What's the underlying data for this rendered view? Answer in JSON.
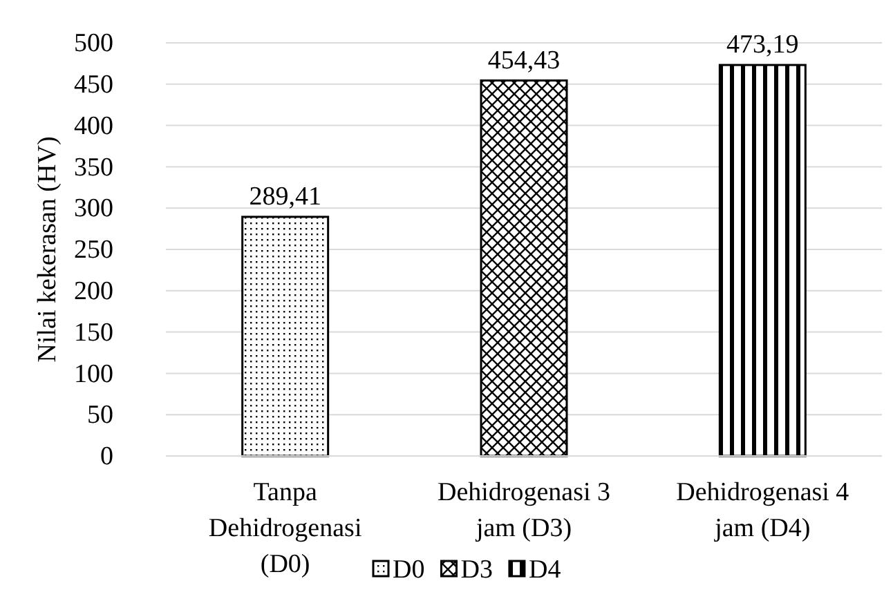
{
  "chart_data": {
    "type": "bar",
    "ylabel": "Nilai kekerasan (HV)",
    "categories": [
      "Tanpa\nDehidrogenasi\n(D0)",
      "Dehidrogenasi 3\njam (D3)",
      "Dehidrogenasi 4\njam (D4)"
    ],
    "series": [
      {
        "name": "D0",
        "color": "#000000",
        "values": [
          289.41,
          null,
          null
        ],
        "value_labels": [
          "289,41",
          null,
          null
        ]
      },
      {
        "name": "D3",
        "color": "#000000",
        "values": [
          null,
          454.43,
          null
        ],
        "value_labels": [
          null,
          "454,43",
          null
        ]
      },
      {
        "name": "D4",
        "color": "#000000",
        "values": [
          null,
          null,
          473.19
        ],
        "value_labels": [
          null,
          null,
          "473,19"
        ]
      }
    ],
    "ylim": [
      0,
      500
    ],
    "yticks": [
      0,
      50,
      100,
      150,
      200,
      250,
      300,
      350,
      400,
      450,
      500
    ],
    "grid": "y",
    "legend": "bottom"
  }
}
